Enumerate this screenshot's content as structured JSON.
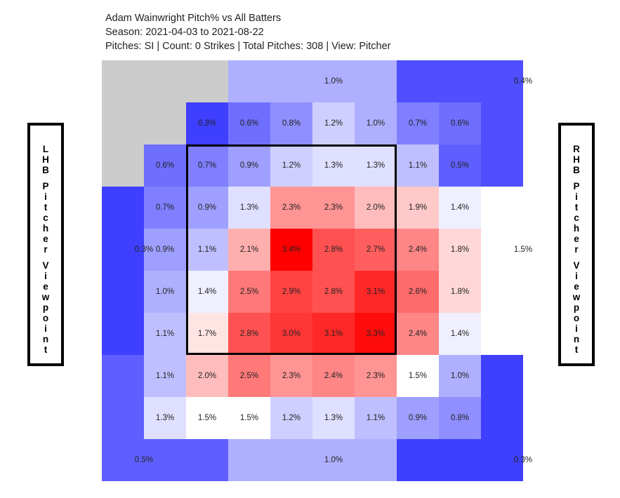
{
  "header": {
    "title": "Adam Wainwright Pitch% vs All Batters",
    "season": "Season: 2021-04-03 to 2021-08-22",
    "details": "Pitches: SI | Count: 0 Strikes | Total Pitches: 308 | View: Pitcher"
  },
  "left_panel": {
    "label": "LHB Pitcher Viewpoint"
  },
  "right_panel": {
    "label": "RHB Pitcher Viewpoint"
  },
  "colors": {
    "low": "#3f3fff",
    "mid": "#ffffff",
    "high": "#ff0000",
    "no_data": "#cccccc",
    "zone_border": "#000000"
  },
  "chart_data": {
    "type": "heatmap",
    "value_unit": "%",
    "inner_grid": {
      "rows": 7,
      "cols": 7,
      "values": [
        [
          0.3,
          0.6,
          0.8,
          1.2,
          1.0,
          0.7,
          0.6
        ],
        [
          0.7,
          0.9,
          1.2,
          1.3,
          1.3,
          1.1,
          0.5
        ],
        [
          0.9,
          1.3,
          2.3,
          2.3,
          2.0,
          1.9,
          1.4
        ],
        [
          1.1,
          2.1,
          3.4,
          2.8,
          2.7,
          2.4,
          1.8
        ],
        [
          1.4,
          2.5,
          2.9,
          2.8,
          3.1,
          2.6,
          1.8
        ],
        [
          1.7,
          2.8,
          3.0,
          3.1,
          3.3,
          2.4,
          1.4
        ],
        [
          2.0,
          2.5,
          2.3,
          2.4,
          2.3,
          1.5,
          1.0
        ]
      ],
      "left_column": [
        0.6,
        0.7,
        0.9,
        1.0,
        1.1,
        1.1,
        1.3
      ],
      "bottom_row": [
        1.5,
        1.5,
        1.2,
        1.3,
        1.1,
        0.9,
        0.8
      ]
    },
    "outer_zones": {
      "top_left": null,
      "top_middle": 1.0,
      "top_right": 0.4,
      "left_middle": 0.3,
      "right_middle": 1.5,
      "bottom_left": 0.5,
      "bottom_middle": 1.0,
      "bottom_right": 0.3
    },
    "strike_zone": {
      "row_start": 1,
      "row_end": 6,
      "col_start": 1,
      "col_end": 6
    },
    "color_scale": {
      "min": 0.3,
      "mid": 1.5,
      "max": 3.4
    }
  }
}
